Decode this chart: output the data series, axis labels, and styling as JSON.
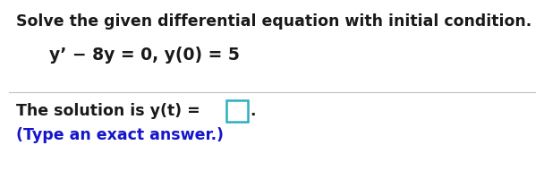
{
  "title_text": "Solve the given differential equation with initial condition.",
  "equation_text": "y’ − 8y = 0, y(0) = 5",
  "solution_prefix": "The solution is y(t) = ",
  "solution_suffix": ".",
  "hint_text": "(Type an exact answer.)",
  "title_color": "#1a1a1a",
  "equation_color": "#1a1a1a",
  "solution_color": "#1a1a1a",
  "hint_color": "#1515cc",
  "box_edge_color": "#2ab0c0",
  "panel_color": "#ffffff",
  "title_fontsize": 12.5,
  "equation_fontsize": 13.5,
  "solution_fontsize": 12.5,
  "hint_fontsize": 12.5,
  "separator_color": "#c0c0c0"
}
